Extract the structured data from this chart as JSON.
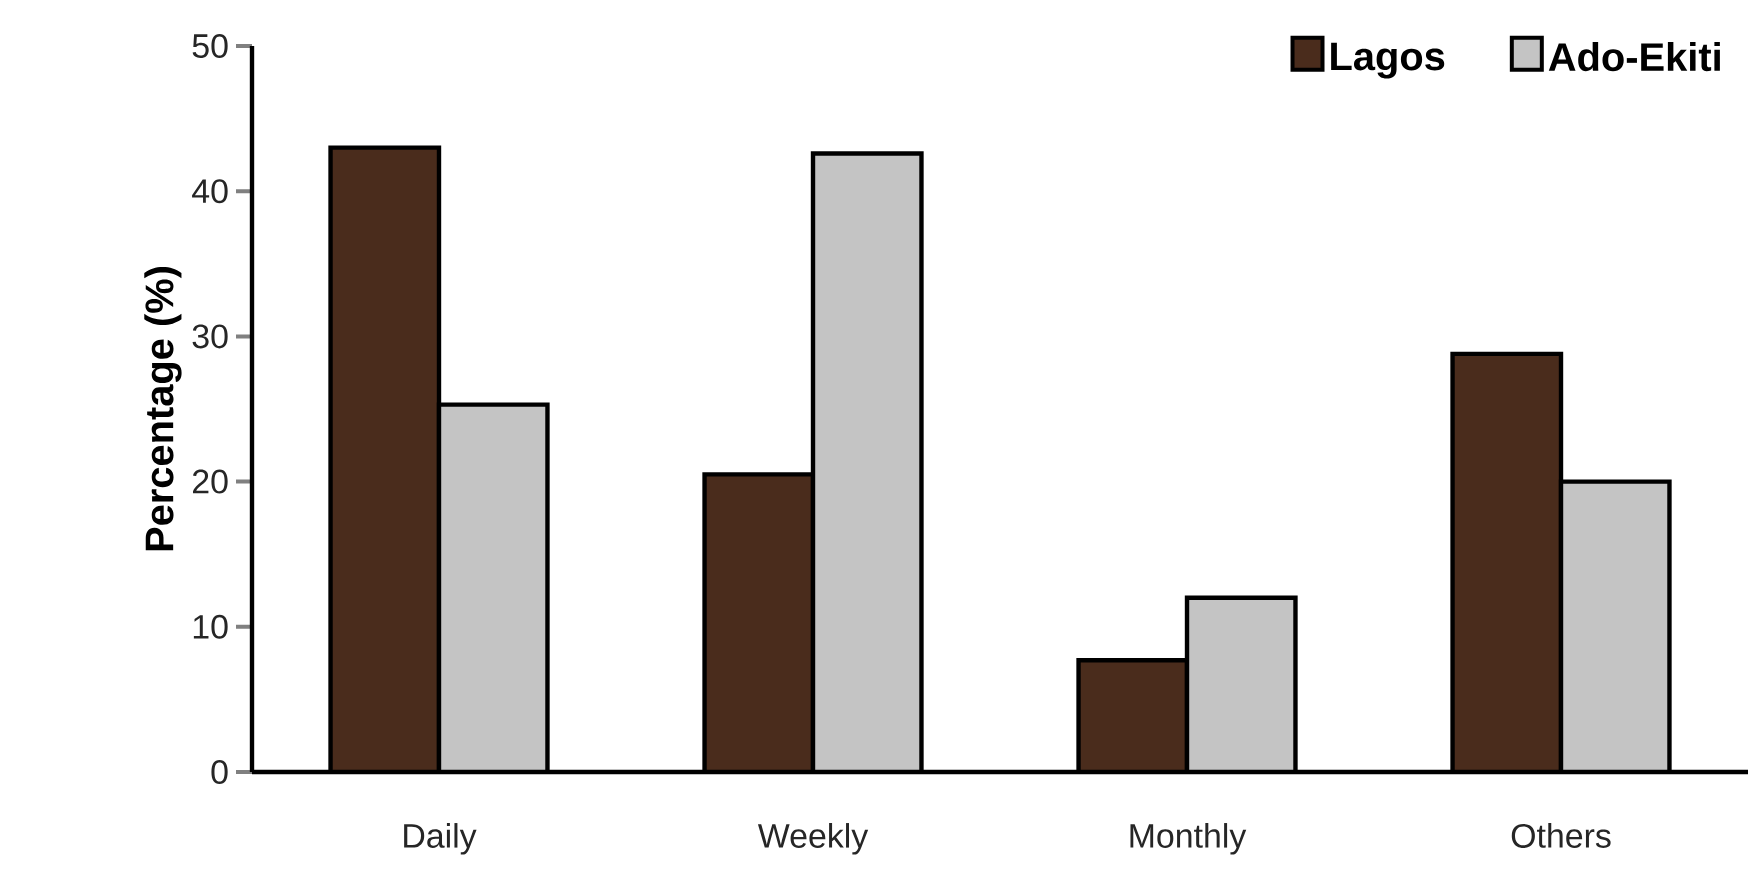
{
  "chart_data": {
    "type": "bar",
    "ylabel": "Percentage (%)",
    "categories": [
      "Daily",
      "Weekly",
      "Monthly",
      "Others"
    ],
    "series": [
      {
        "name": "Lagos",
        "color": "#4a2c1c",
        "values": [
          43.0,
          20.5,
          7.7,
          28.8
        ]
      },
      {
        "name": "Ado-Ekiti",
        "color": "#c4c4c4",
        "values": [
          25.3,
          42.6,
          12.0,
          20.0
        ]
      }
    ],
    "ylim": [
      0,
      50
    ],
    "yticks": [
      0,
      10,
      20,
      30,
      40,
      50
    ],
    "legend": "top right"
  }
}
